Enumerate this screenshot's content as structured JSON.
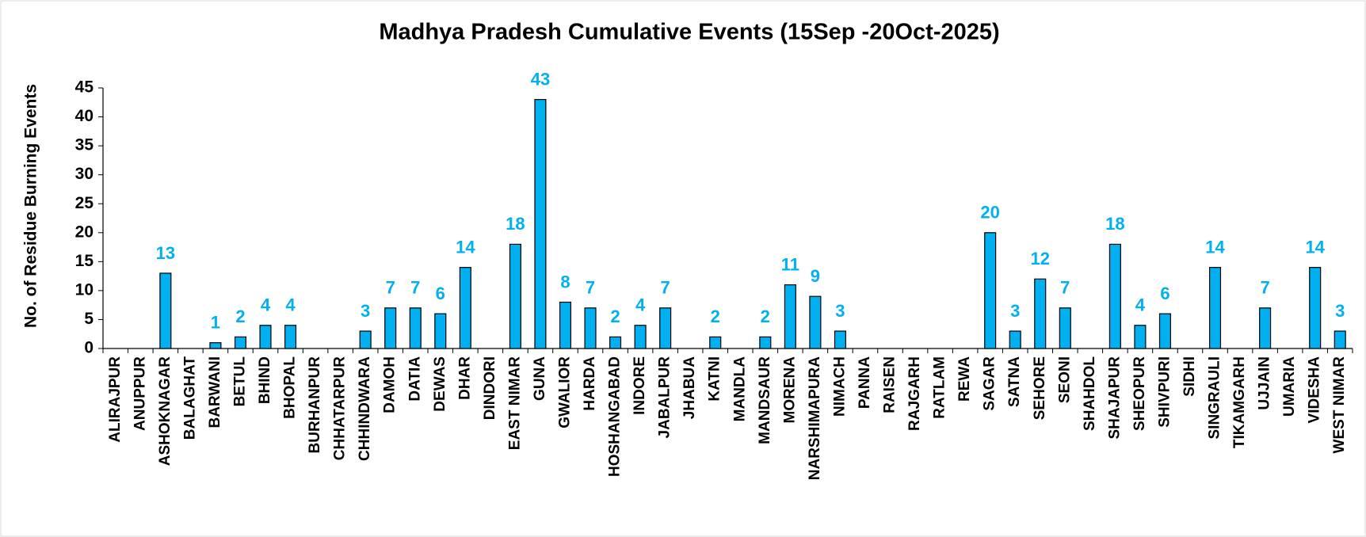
{
  "chart_data": {
    "type": "bar",
    "title": "Madhya Pradesh Cumulative Events (15Sep -20Oct-2025)",
    "y_label": "No. of Residue Burning Events",
    "categories": [
      "ALIRAJPUR",
      "ANUPPUR",
      "ASHOKNAGAR",
      "BALAGHAT",
      "BARWANI",
      "BETUL",
      "BHIND",
      "BHOPAL",
      "BURHANPUR",
      "CHHATARPUR",
      "CHHINDWARA",
      "DAMOH",
      "DATIA",
      "DEWAS",
      "DHAR",
      "DINDORI",
      "EAST NIMAR",
      "GUNA",
      "GWALIOR",
      "HARDA",
      "HOSHANGABAD",
      "INDORE",
      "JABALPUR",
      "JHABUA",
      "KATNI",
      "MANDLA",
      "MANDSAUR",
      "MORENA",
      "NARSHIMAPURA",
      "NIMACH",
      "PANNA",
      "RAISEN",
      "RAJGARH",
      "RATLAM",
      "REWA",
      "SAGAR",
      "SATNA",
      "SEHORE",
      "SEONI",
      "SHAHDOL",
      "SHAJAPUR",
      "SHEOPUR",
      "SHIVPURI",
      "SIDHI",
      "SINGRAULI",
      "TIKAMGARH",
      "UJJAIN",
      "UMARIA",
      "VIDESHA",
      "WEST NIMAR"
    ],
    "values": [
      0,
      0,
      13,
      0,
      1,
      2,
      4,
      4,
      0,
      0,
      3,
      7,
      7,
      6,
      14,
      0,
      18,
      43,
      8,
      7,
      2,
      4,
      7,
      0,
      2,
      0,
      2,
      11,
      9,
      3,
      0,
      0,
      0,
      0,
      0,
      20,
      3,
      12,
      7,
      0,
      18,
      4,
      6,
      0,
      14,
      0,
      7,
      0,
      14,
      3
    ],
    "color": "#00b0f0",
    "label_color": "#00b0f0",
    "ylim": [
      0,
      45
    ],
    "yticks": [
      0,
      5,
      10,
      15,
      20,
      25,
      30,
      35,
      40,
      45
    ],
    "grid": false
  }
}
